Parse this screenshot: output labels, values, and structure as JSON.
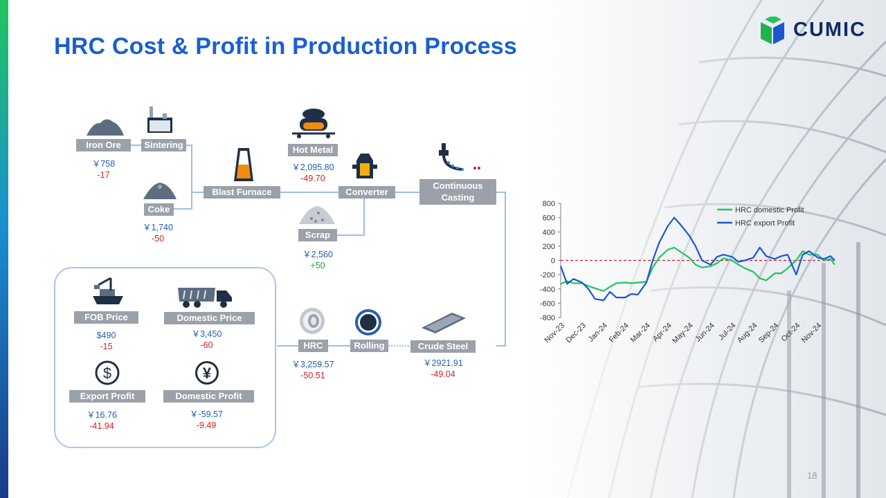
{
  "slide": {
    "title": "HRC Cost & Profit in Production Process",
    "logo_text": "CUMIC",
    "page_number": "18",
    "accent_color": "#1a5fd0"
  },
  "process": {
    "iron_ore": {
      "label": "Iron Ore",
      "price": "￥758",
      "change": "-17",
      "icon": "ore-pile-icon"
    },
    "sintering": {
      "label": "Sintering",
      "icon": "factory-icon"
    },
    "coke": {
      "label": "Coke",
      "price": "￥1,740",
      "change": "-50",
      "icon": "coke-pile-icon"
    },
    "blast_furnace": {
      "label": "Blast Furnace",
      "icon": "blast-furnace-icon"
    },
    "hot_metal": {
      "label": "Hot Metal",
      "price": "￥2,095.80",
      "change": "-49.70",
      "icon": "ladle-car-icon"
    },
    "converter": {
      "label": "Converter",
      "icon": "converter-icon"
    },
    "scrap": {
      "label": "Scrap",
      "price": "￥2,560",
      "change": "+50",
      "icon": "scrap-pile-icon"
    },
    "continuous_casting": {
      "label_line1": "Continuous",
      "label_line2": "Casting",
      "icon": "caster-icon"
    },
    "crude_steel": {
      "label": "Crude Steel",
      "price": "￥2921.91",
      "change": "-49.04",
      "icon": "steel-slab-icon"
    },
    "rolling": {
      "label": "Rolling",
      "icon": "roller-icon"
    },
    "hrc": {
      "label": "HRC",
      "price": "￥3,259.57",
      "change": "-50.51",
      "icon": "coil-icon"
    }
  },
  "profit_box": {
    "fob_price": {
      "label": "FOB Price",
      "value": "$490",
      "change": "-15",
      "icon": "ship-crane-icon"
    },
    "domestic_price": {
      "label": "Domestic Price",
      "value": "￥3,450",
      "change": "-60",
      "icon": "truck-icon"
    },
    "export_profit": {
      "label": "Export Profit",
      "value": "￥16.76",
      "change": "-41.94",
      "icon": "dollar-icon"
    },
    "domestic_profit": {
      "label": "Domestic Profit",
      "value": "￥-59.57",
      "change": "-9.49",
      "icon": "yen-icon"
    }
  },
  "chart_data": {
    "type": "line",
    "title": "",
    "xlabel": "",
    "ylabel": "",
    "ylim": [
      -800,
      800
    ],
    "yticks": [
      800,
      600,
      400,
      200,
      0,
      -200,
      -400,
      -600,
      -800
    ],
    "ytick_labels": [
      "800",
      "600",
      "400",
      "200",
      "0",
      "-200",
      "-400",
      "-600",
      "-800"
    ],
    "xtick_labels": [
      "Nov-23",
      "Dec-23",
      "Jan-24",
      "Feb-24",
      "Mar-24",
      "Apr-24",
      "May-24",
      "Jun-24",
      "Jul-24",
      "Aug-24",
      "Sep-24",
      "Oct-24",
      "Nov-24"
    ],
    "x_months": [
      0,
      12.8
    ],
    "reference_line": {
      "y": 0,
      "style": "dashed",
      "color": "#c0202a"
    },
    "legend": {
      "position": "top-right"
    },
    "series": [
      {
        "name": "HRC domestic Profit",
        "color": "#22c45e",
        "x": [
          0,
          0.3,
          0.6,
          1,
          1.3,
          1.6,
          2,
          2.3,
          2.6,
          3,
          3.3,
          3.6,
          4,
          4.3,
          4.6,
          5,
          5.3,
          5.6,
          6,
          6.3,
          6.6,
          7,
          7.3,
          7.6,
          8,
          8.3,
          8.6,
          9,
          9.3,
          9.6,
          10,
          10.3,
          10.6,
          11,
          11.3,
          11.6,
          12,
          12.3,
          12.6,
          12.8
        ],
        "values": [
          -330,
          -290,
          -320,
          -320,
          -360,
          -390,
          -430,
          -370,
          -320,
          -310,
          -320,
          -310,
          -300,
          -100,
          40,
          150,
          180,
          120,
          40,
          -60,
          -100,
          -80,
          -40,
          30,
          0,
          -60,
          -110,
          -160,
          -250,
          -280,
          -180,
          -180,
          -110,
          0,
          130,
          80,
          80,
          0,
          20,
          -60
        ]
      },
      {
        "name": "HRC export Profit",
        "color": "#1a56d0",
        "x": [
          0,
          0.3,
          0.6,
          1,
          1.3,
          1.6,
          2,
          2.3,
          2.6,
          3,
          3.3,
          3.6,
          4,
          4.3,
          4.6,
          5,
          5.3,
          5.6,
          6,
          6.3,
          6.6,
          7,
          7.3,
          7.6,
          8,
          8.3,
          8.6,
          9,
          9.3,
          9.6,
          10,
          10.3,
          10.6,
          11,
          11.3,
          11.6,
          12,
          12.3,
          12.6,
          12.8
        ],
        "values": [
          -80,
          -330,
          -260,
          -310,
          -400,
          -540,
          -560,
          -440,
          -520,
          -520,
          -470,
          -480,
          -310,
          0,
          250,
          480,
          600,
          500,
          350,
          200,
          0,
          -60,
          50,
          80,
          50,
          -20,
          0,
          40,
          180,
          60,
          20,
          60,
          80,
          -200,
          80,
          130,
          40,
          20,
          60,
          0
        ]
      }
    ]
  }
}
